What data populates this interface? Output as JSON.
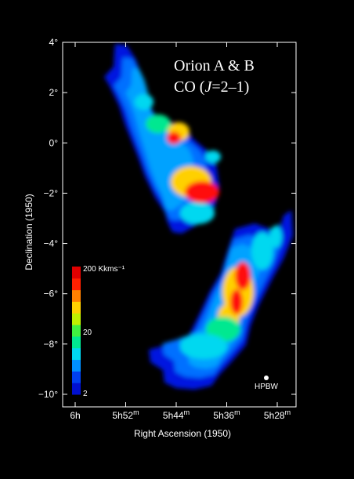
{
  "chart_data": {
    "type": "heatmap",
    "title_line1": "Orion A & B",
    "title_line2_prefix": "CO (",
    "title_line2_italic": "J",
    "title_line2_suffix": "=2–1)",
    "xlabel": "Right Ascension  (1950)",
    "ylabel": "Declination  (1950)",
    "x_ticks": [
      {
        "h": "6h",
        "m": ""
      },
      {
        "h": "5h52",
        "m": "m"
      },
      {
        "h": "5h44",
        "m": "m"
      },
      {
        "h": "5h36",
        "m": "m"
      },
      {
        "h": "5h28",
        "m": "m"
      }
    ],
    "y_ticks": [
      {
        "value": 4,
        "label": "4°"
      },
      {
        "value": 2,
        "label": "2°"
      },
      {
        "value": 0,
        "label": "0°"
      },
      {
        "value": -2,
        "label": "−2°"
      },
      {
        "value": -4,
        "label": "−4°"
      },
      {
        "value": -6,
        "label": "−6°"
      },
      {
        "value": -8,
        "label": "−8°"
      },
      {
        "value": -10,
        "label": "−10°"
      }
    ],
    "ylim": [
      -10.5,
      4
    ],
    "colorbar": {
      "max_label": "200 Kkms⁻¹",
      "mid_label": "20",
      "min_label": "2",
      "colors": [
        "#0010d0",
        "#0040f0",
        "#0090ff",
        "#00d8f0",
        "#00e890",
        "#40f040",
        "#c0f000",
        "#ffd000",
        "#ff8000",
        "#ff2000",
        "#e00000"
      ]
    },
    "beam_label": "HPBW",
    "clouds": [
      {
        "name": "Orion B",
        "polygon": [
          [
            147,
            56
          ],
          [
            162,
            58
          ],
          [
            173,
            75
          ],
          [
            182,
            100
          ],
          [
            186,
            126
          ],
          [
            200,
            150
          ],
          [
            225,
            158
          ],
          [
            240,
            170
          ],
          [
            250,
            180
          ],
          [
            268,
            195
          ],
          [
            276,
            210
          ],
          [
            280,
            238
          ],
          [
            274,
            265
          ],
          [
            262,
            280
          ],
          [
            246,
            290
          ],
          [
            232,
            298
          ],
          [
            220,
            296
          ],
          [
            214,
            284
          ],
          [
            210,
            270
          ],
          [
            198,
            252
          ],
          [
            185,
            225
          ],
          [
            176,
            200
          ],
          [
            168,
            180
          ],
          [
            160,
            160
          ],
          [
            152,
            135
          ],
          [
            140,
            110
          ],
          [
            133,
            98
          ],
          [
            145,
            85
          ],
          [
            146,
            66
          ]
        ],
        "peaks": [
          [
            258,
            245,
            22,
            14,
            "#ff1010"
          ],
          [
            222,
            176,
            9,
            8,
            "#ff1010"
          ],
          [
            244,
            232,
            26,
            20,
            "#ffd000"
          ],
          [
            228,
            168,
            14,
            12,
            "#ffd000"
          ],
          [
            202,
            158,
            16,
            12,
            "#00e890"
          ],
          [
            184,
            130,
            12,
            10,
            "#00d8f0"
          ],
          [
            252,
            272,
            22,
            14,
            "#00d8f0"
          ],
          [
            272,
            200,
            10,
            8,
            "#00d8f0"
          ]
        ]
      },
      {
        "name": "Orion A",
        "polygon": [
          [
            300,
            292
          ],
          [
            325,
            285
          ],
          [
            345,
            292
          ],
          [
            355,
            300
          ],
          [
            362,
            275
          ],
          [
            372,
            268
          ],
          [
            374,
            300
          ],
          [
            362,
            330
          ],
          [
            348,
            355
          ],
          [
            330,
            390
          ],
          [
            320,
            415
          ],
          [
            314,
            440
          ],
          [
            295,
            462
          ],
          [
            280,
            478
          ],
          [
            270,
            492
          ],
          [
            248,
            497
          ],
          [
            225,
            495
          ],
          [
            210,
            488
          ],
          [
            208,
            472
          ],
          [
            192,
            462
          ],
          [
            190,
            446
          ],
          [
            212,
            440
          ],
          [
            240,
            430
          ],
          [
            255,
            400
          ],
          [
            268,
            372
          ],
          [
            282,
            348
          ],
          [
            290,
            322
          ]
        ],
        "peaks": [
          [
            310,
            352,
            10,
            18,
            "#ff1010"
          ],
          [
            302,
            385,
            8,
            16,
            "#ff1010"
          ],
          [
            304,
            372,
            20,
            32,
            "#ffd000"
          ],
          [
            292,
            405,
            14,
            18,
            "#ffd000"
          ],
          [
            285,
            420,
            22,
            16,
            "#00e890"
          ],
          [
            260,
            442,
            30,
            16,
            "#00d8f0"
          ],
          [
            335,
            320,
            14,
            24,
            "#00d8f0"
          ],
          [
            352,
            302,
            8,
            14,
            "#00d8f0"
          ]
        ]
      }
    ]
  }
}
